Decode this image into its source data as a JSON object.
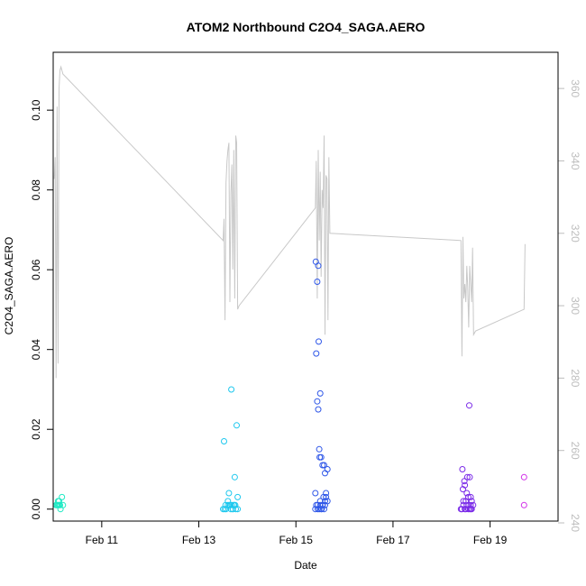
{
  "chart_data": {
    "type": "scatter",
    "title": "ATOM2 Northbound C2O4_SAGA.AERO",
    "xlabel": "Date",
    "ylabel": "C2O4_SAGA.AERO",
    "x_axis": {
      "type": "date_days",
      "range_days": [
        10.0,
        20.4
      ],
      "ticks": [
        11,
        13,
        15,
        17,
        19
      ],
      "tick_labels": [
        "Feb 11",
        "Feb 13",
        "Feb 15",
        "Feb 17",
        "Feb 19"
      ]
    },
    "y_axis": {
      "range": [
        -0.003,
        0.1145
      ],
      "ticks": [
        0.0,
        0.02,
        0.04,
        0.06,
        0.08,
        0.1
      ],
      "tick_labels": [
        "0.00",
        "0.02",
        "0.04",
        "0.06",
        "0.08",
        "0.10"
      ]
    },
    "y2_axis": {
      "color": "#bdbdbd",
      "range": [
        240.5,
        370.0
      ],
      "ticks": [
        240,
        260,
        280,
        300,
        320,
        340,
        360
      ],
      "tick_labels": [
        "240",
        "260",
        "280",
        "300",
        "320",
        "340",
        "360"
      ]
    },
    "scatter_series": [
      {
        "x": [
          10.08,
          10.1,
          10.12,
          10.14,
          10.06,
          10.1,
          10.15,
          10.18,
          10.12,
          10.2
        ],
        "y": [
          0.001,
          0.001,
          0.002,
          0.001,
          0.001,
          0.002,
          0.0,
          0.003,
          0.001,
          0.001
        ],
        "color": "#1de9c3"
      },
      {
        "x": [
          13.5,
          13.53,
          13.56,
          13.6,
          13.63,
          13.66,
          13.7,
          13.73,
          13.76,
          13.8,
          13.55,
          13.6,
          13.65,
          13.7,
          13.75,
          13.8,
          13.62,
          13.68,
          13.74,
          13.78,
          13.52,
          13.67,
          13.72
        ],
        "y": [
          0.0,
          0.0,
          0.0,
          0.001,
          0.001,
          0.0,
          0.0,
          0.001,
          0.0,
          0.0,
          0.001,
          0.002,
          0.001,
          0.0,
          0.001,
          0.003,
          0.004,
          0.001,
          0.008,
          0.021,
          0.017,
          0.03,
          0.001
        ],
        "color": "#1ec8ee"
      },
      {
        "x": [
          15.4,
          15.42,
          15.45,
          15.48,
          15.5,
          15.52,
          15.55,
          15.58,
          15.6,
          15.62,
          15.65,
          15.4,
          15.45,
          15.5,
          15.55,
          15.6,
          15.65,
          15.48,
          15.52,
          15.58,
          15.62,
          15.44,
          15.5,
          15.46,
          15.42,
          15.47,
          15.44,
          15.46,
          15.41,
          15.49,
          15.55,
          15.53,
          15.57,
          15.6
        ],
        "y": [
          0.0,
          0.001,
          0.0,
          0.0,
          0.001,
          0.0,
          0.001,
          0.0,
          0.002,
          0.003,
          0.002,
          0.004,
          0.001,
          0.002,
          0.011,
          0.009,
          0.01,
          0.015,
          0.013,
          0.011,
          0.004,
          0.027,
          0.029,
          0.025,
          0.039,
          0.042,
          0.057,
          0.061,
          0.062,
          0.013,
          0.001,
          0.0,
          0.003,
          0.001
        ],
        "color": "#2f57e8"
      },
      {
        "x": [
          18.4,
          18.42,
          18.45,
          18.48,
          18.5,
          18.52,
          18.55,
          18.58,
          18.6,
          18.62,
          18.65,
          18.45,
          18.5,
          18.55,
          18.6,
          18.48,
          18.52,
          18.58,
          18.43,
          18.47,
          18.53,
          18.57,
          18.62,
          18.44,
          18.56,
          18.6
        ],
        "y": [
          0.0,
          0.0,
          0.001,
          0.0,
          0.0,
          0.001,
          0.0,
          0.0,
          0.001,
          0.0,
          0.001,
          0.002,
          0.002,
          0.003,
          0.003,
          0.006,
          0.004,
          0.008,
          0.01,
          0.007,
          0.008,
          0.026,
          0.002,
          0.005,
          0.001,
          0.0
        ],
        "color": "#7a2ae8"
      },
      {
        "x": [
          19.7,
          19.7
        ],
        "y": [
          0.001,
          0.008
        ],
        "color": "#d12ee8"
      }
    ],
    "line_series": {
      "axis": "y2",
      "color": "#c8c8c8",
      "x": [
        10.02,
        10.04,
        10.06,
        10.08,
        10.1,
        10.12,
        10.14,
        10.16,
        10.18,
        10.2,
        13.5,
        13.52,
        13.54,
        13.56,
        13.58,
        13.6,
        13.62,
        13.64,
        13.66,
        13.68,
        13.7,
        13.72,
        13.74,
        13.76,
        13.78,
        13.8,
        13.83,
        15.4,
        15.42,
        15.44,
        15.46,
        15.48,
        15.5,
        15.52,
        15.54,
        15.56,
        15.58,
        15.6,
        15.62,
        15.64,
        15.66,
        15.68,
        15.7,
        18.4,
        18.42,
        18.44,
        18.46,
        18.48,
        18.5,
        18.52,
        18.54,
        18.56,
        18.58,
        18.6,
        18.62,
        18.64,
        18.66,
        18.7,
        19.7,
        19.72
      ],
      "y": [
        335,
        341,
        280,
        355,
        284,
        360,
        365,
        366,
        365,
        364,
        318,
        324,
        296,
        334,
        340,
        343,
        345,
        301,
        331,
        339,
        310,
        343,
        302,
        347,
        345,
        299,
        300,
        327,
        340,
        302,
        343,
        318,
        337,
        308,
        332,
        327,
        347,
        292,
        336,
        335,
        296,
        341,
        320,
        318,
        286,
        319,
        302,
        306,
        301,
        311,
        305,
        294,
        311,
        306,
        301,
        316,
        292,
        293,
        299,
        317
      ]
    }
  }
}
